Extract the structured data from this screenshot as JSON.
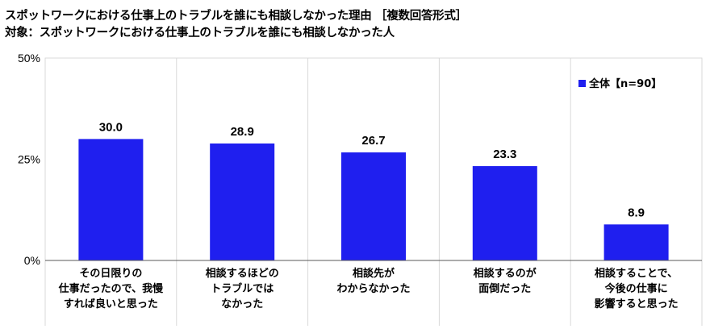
{
  "title": "スポットワークにおける仕事上のトラブルを誰にも相談しなかった理由 ［複数回答形式］",
  "subtitle": "対象：スポットワークにおける仕事上のトラブルを誰にも相談しなかった人",
  "colors": {
    "bar": "#1f1fef",
    "grid": "#d9d9d9",
    "axis": "#595959"
  },
  "chart_data": {
    "type": "bar",
    "categories": [
      [
        "その日限りの",
        "仕事だったので、我慢",
        "すれば良いと思った"
      ],
      [
        "相談するほどの",
        "トラブルでは",
        "なかった"
      ],
      [
        "相談先が",
        "わからなかった"
      ],
      [
        "相談するのが",
        "面倒だった"
      ],
      [
        "相談することで、",
        "今後の仕事に",
        "影響すると思った"
      ]
    ],
    "series": [
      {
        "name": "全体【n=90】",
        "values": [
          30.0,
          28.9,
          26.7,
          23.3,
          8.9
        ]
      }
    ],
    "value_labels": [
      "30.0",
      "28.9",
      "26.7",
      "23.3",
      "8.9"
    ],
    "yticks": [
      "0%",
      "25%",
      "50%"
    ],
    "ylim": [
      0,
      50
    ],
    "grid": true,
    "legend_position": "top-right"
  }
}
